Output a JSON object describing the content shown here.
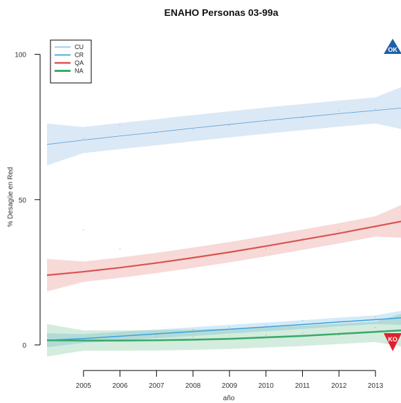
{
  "chart_data": {
    "type": "line",
    "title": "ENAHO Personas 03-99a",
    "xlabel": "año",
    "ylabel": "% Desagüe en Red",
    "xlim": [
      2004,
      2013.7
    ],
    "ylim": [
      -5,
      108
    ],
    "x_ticks": [
      2005,
      2006,
      2007,
      2008,
      2009,
      2010,
      2011,
      2012,
      2013
    ],
    "y_ticks": [
      0,
      50,
      100
    ],
    "legend_position": "top-left",
    "grid": false,
    "series": [
      {
        "name": "CU",
        "color": "#5b9bd5",
        "fit_x": [
          2004,
          2005,
          2006,
          2007,
          2008,
          2009,
          2010,
          2011,
          2012,
          2013,
          2013.7
        ],
        "fit_y": [
          69,
          70.5,
          71.9,
          73.2,
          74.6,
          75.9,
          77.2,
          78.4,
          79.6,
          80.7,
          81.5
        ],
        "band": 4.5,
        "line_width": 0.8,
        "points_x": [
          2005,
          2006,
          2007,
          2008,
          2009,
          2010,
          2011,
          2012,
          2013
        ],
        "points_y": [
          70.5,
          75,
          72.5,
          73.5,
          75,
          76.5,
          77.5,
          80,
          80.5
        ]
      },
      {
        "name": "CR",
        "color": "#3aa0dc",
        "fit_x": [
          2004,
          2005,
          2006,
          2007,
          2008,
          2009,
          2010,
          2011,
          2012,
          2013,
          2013.7
        ],
        "fit_y": [
          1.6,
          2.2,
          3.0,
          3.8,
          4.6,
          5.4,
          6.2,
          7.0,
          7.9,
          8.7,
          9.3
        ],
        "band": 1.5,
        "line_width": 1.5,
        "points_x": [
          2005,
          2006,
          2007,
          2008,
          2009,
          2010,
          2011,
          2012,
          2013
        ],
        "points_y": [
          1.5,
          2.5,
          3.5,
          4.8,
          5.5,
          6.3,
          7.8,
          8.0,
          9.0
        ]
      },
      {
        "name": "QA",
        "color": "#d9534f",
        "fit_x": [
          2004,
          2005,
          2006,
          2007,
          2008,
          2009,
          2010,
          2011,
          2012,
          2013,
          2013.7
        ],
        "fit_y": [
          24,
          25.2,
          26.6,
          28.2,
          30.0,
          31.9,
          34.0,
          36.2,
          38.4,
          40.8,
          42.5
        ],
        "band": 3.5,
        "line_width": 2.2,
        "points_x": [
          2005,
          2006,
          2007,
          2008,
          2009,
          2010,
          2011,
          2012,
          2013
        ],
        "points_y": [
          39,
          32.5,
          28,
          29.5,
          31.5,
          32.5,
          36,
          39,
          40
        ]
      },
      {
        "name": "NA",
        "color": "#3aaa6a",
        "fit_x": [
          2004,
          2005,
          2006,
          2007,
          2008,
          2009,
          2010,
          2011,
          2012,
          2013,
          2013.7
        ],
        "fit_y": [
          1.6,
          1.5,
          1.5,
          1.6,
          1.8,
          2.1,
          2.6,
          3.1,
          3.8,
          4.5,
          5.0
        ],
        "band": 3.5,
        "line_width": 2.6,
        "points_x": [
          2005,
          2006,
          2007,
          2008,
          2009,
          2010,
          2011,
          2012,
          2013
        ],
        "points_y": [
          1.0,
          1.0,
          2.5,
          2.2,
          2.5,
          2.8,
          3.5,
          2.8,
          5.5
        ]
      }
    ],
    "badges": [
      {
        "label": "OK",
        "color": "#1f5fa8",
        "shape": "up-triangle",
        "corner": "top-right"
      },
      {
        "label": "KO",
        "color": "#e0202f",
        "shape": "down-triangle",
        "corner": "bottom-right"
      }
    ]
  }
}
